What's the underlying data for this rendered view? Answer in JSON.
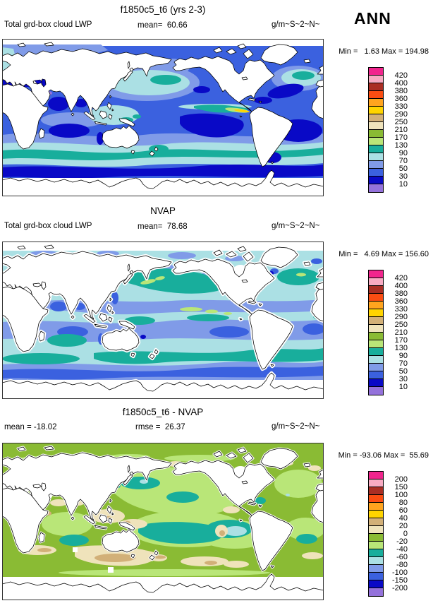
{
  "season": "ANN",
  "panels": [
    {
      "title": "f1850c5_t6 (yrs 2-3)",
      "left_label": "Total grd-box cloud LWP",
      "mean": "mean=  60.66",
      "units": "g/m~S~2~N~",
      "minmax": "Min =   1.63 Max = 194.98"
    },
    {
      "title": "NVAP",
      "left_label": "Total grd-box cloud LWP",
      "mean": "mean=  78.68",
      "units": "g/m~S~2~N~",
      "minmax": "Min =   4.69 Max = 156.60"
    },
    {
      "title": "f1850c5_t6 - NVAP",
      "mean": "mean = -18.02",
      "rmse": "rmse =  26.37",
      "units": "g/m~S~2~N~",
      "minmax": "Min = -93.06 Max =  55.69"
    }
  ],
  "palette": [
    "#F1258D",
    "#F8ABC3",
    "#AA2E24",
    "#FB4D12",
    "#FFA41E",
    "#FFD400",
    "#D2B078",
    "#EFE3BB",
    "#8ABB34",
    "#B9E678",
    "#18AE9C",
    "#ABE0E4",
    "#809BE8",
    "#3B61DF",
    "#0909C6",
    "#9472DB"
  ],
  "colorbars": {
    "lwp": {
      "labels": [
        "420",
        "400",
        "380",
        "360",
        "330",
        "290",
        "250",
        "210",
        "170",
        "130",
        "90",
        "70",
        "50",
        "30",
        "10"
      ]
    },
    "diff": {
      "labels": [
        "200",
        "150",
        "100",
        "80",
        "60",
        "40",
        "20",
        "0",
        "-20",
        "-40",
        "-60",
        "-80",
        "-100",
        "-150",
        "-200"
      ]
    }
  },
  "chart_data": [
    {
      "type": "heatmap",
      "title": "f1850c5_t6 (yrs 2-3)",
      "variable": "Total grd-box cloud LWP",
      "units": "g/m~S~2~N~",
      "season": "ANN",
      "mean": 60.66,
      "min": 1.63,
      "max": 194.98,
      "contour_levels": [
        10,
        30,
        50,
        70,
        90,
        130,
        170,
        210,
        250,
        290,
        330,
        360,
        380,
        400,
        420
      ],
      "projection": "global cylindrical equidistant, Pacific-centered",
      "legend_position": "right",
      "notes": "ocean-only filled contours; most ocean 10-130 range (blues/teal), green-yellow streak off Peru"
    },
    {
      "type": "heatmap",
      "title": "NVAP",
      "variable": "Total grd-box cloud LWP",
      "units": "g/m~S~2~N~",
      "season": "ANN",
      "mean": 78.68,
      "min": 4.69,
      "max": 156.6,
      "contour_levels": [
        10,
        30,
        50,
        70,
        90,
        130,
        170,
        210,
        250,
        290,
        330,
        360,
        380,
        400,
        420
      ],
      "projection": "global cylindrical equidistant, Pacific-centered",
      "legend_position": "right",
      "notes": "gridded obs with white coastal gaps; teal 90-130 band N Pacific & Southern Ocean, small 130-170 green patches"
    },
    {
      "type": "heatmap",
      "title": "f1850c5_t6 - NVAP",
      "units": "g/m~S~2~N~",
      "season": "ANN",
      "mean": -18.02,
      "rmse": 26.37,
      "min": -93.06,
      "max": 55.69,
      "contour_levels": [
        -200,
        -150,
        -100,
        -80,
        -60,
        -40,
        -20,
        0,
        20,
        40,
        60,
        80,
        100,
        150,
        200
      ],
      "projection": "global cylindrical equidistant, Pacific-centered",
      "legend_position": "right",
      "notes": "mostly -40..0 greens; teal -60..-40 blobs N/S Pacific & S Indian; beige/tan positive patches near Indonesia and 50S"
    }
  ]
}
